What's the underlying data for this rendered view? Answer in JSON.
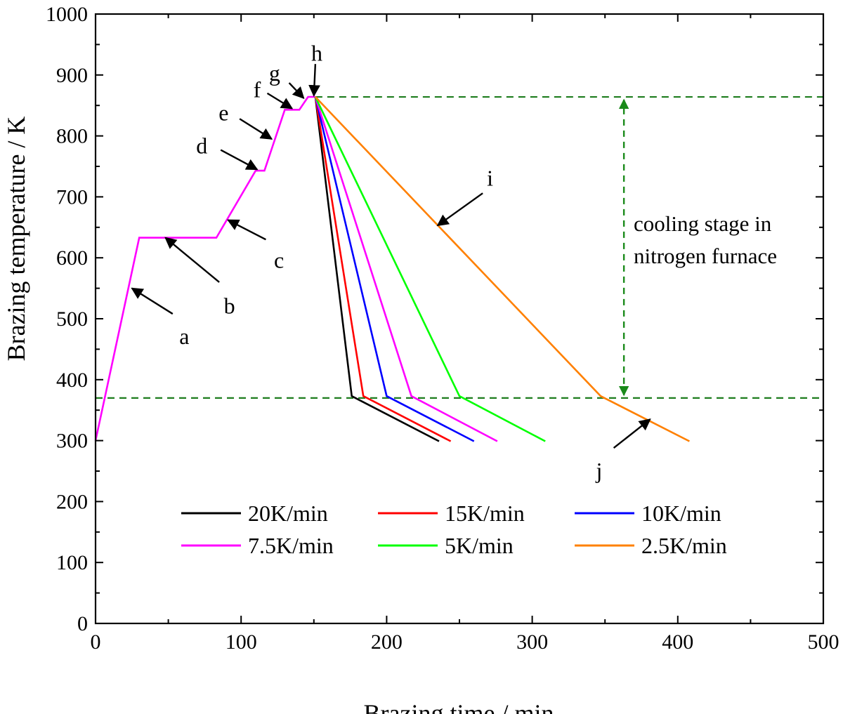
{
  "chart_data": {
    "type": "line",
    "xlabel": "Brazing time / min",
    "ylabel": "Brazing temperature / K",
    "xlim": [
      0,
      500
    ],
    "ylim": [
      0,
      1000
    ],
    "xticks": [
      0,
      100,
      200,
      300,
      400,
      500
    ],
    "yticks": [
      0,
      100,
      200,
      300,
      400,
      500,
      600,
      700,
      800,
      900,
      1000
    ],
    "heating_curve": {
      "color": "#ff00ff",
      "points": [
        [
          0,
          300
        ],
        [
          30,
          633
        ],
        [
          83,
          633
        ],
        [
          110,
          743
        ],
        [
          116,
          743
        ],
        [
          130,
          843
        ],
        [
          140,
          843
        ],
        [
          146,
          864
        ],
        [
          151,
          864
        ]
      ]
    },
    "series": [
      {
        "name": "20K/min",
        "color": "#000000",
        "points": [
          [
            151,
            864
          ],
          [
            176,
            373
          ],
          [
            236,
            299
          ]
        ]
      },
      {
        "name": "15K/min",
        "color": "#ff0000",
        "points": [
          [
            151,
            864
          ],
          [
            184,
            373
          ],
          [
            244,
            299
          ]
        ]
      },
      {
        "name": "10K/min",
        "color": "#0000ff",
        "points": [
          [
            151,
            864
          ],
          [
            200,
            373
          ],
          [
            260,
            299
          ]
        ]
      },
      {
        "name": "7.5K/min",
        "color": "#ff00ff",
        "points": [
          [
            151,
            864
          ],
          [
            217,
            373
          ],
          [
            276,
            299
          ]
        ]
      },
      {
        "name": "5K/min",
        "color": "#00ff00",
        "points": [
          [
            151,
            864
          ],
          [
            250,
            373
          ],
          [
            309,
            299
          ]
        ]
      },
      {
        "name": "2.5K/min",
        "color": "#ff8000",
        "points": [
          [
            151,
            864
          ],
          [
            347,
            373
          ],
          [
            408,
            299
          ]
        ]
      }
    ],
    "reference_lines": {
      "color": "#1e7d1e",
      "y_values": [
        864,
        370
      ]
    },
    "cooling_arrow": {
      "x": 363,
      "y_from": 370,
      "y_to": 864
    },
    "annotations": [
      {
        "label": "a",
        "tip": [
          25,
          550
        ],
        "tail": [
          53,
          508
        ],
        "text_at": [
          61,
          470
        ]
      },
      {
        "label": "b",
        "tip": [
          48,
          633
        ],
        "tail": [
          85,
          560
        ],
        "text_at": [
          92,
          520
        ]
      },
      {
        "label": "c",
        "tip": [
          91,
          662
        ],
        "tail": [
          117,
          630
        ],
        "text_at": [
          126,
          595
        ]
      },
      {
        "label": "d",
        "tip": [
          111,
          745
        ],
        "tail": [
          86,
          777
        ],
        "text_at": [
          73,
          783
        ]
      },
      {
        "label": "e",
        "tip": [
          121,
          795
        ],
        "tail": [
          99,
          828
        ],
        "text_at": [
          88,
          837
        ]
      },
      {
        "label": "f",
        "tip": [
          135,
          845
        ],
        "tail": [
          118,
          870
        ],
        "text_at": [
          111,
          875
        ]
      },
      {
        "label": "g",
        "tip": [
          143,
          862
        ],
        "tail": [
          133,
          887
        ],
        "text_at": [
          123,
          902
        ]
      },
      {
        "label": "h",
        "tip": [
          150,
          866
        ],
        "tail": [
          151,
          918
        ],
        "text_at": [
          152,
          935
        ]
      },
      {
        "label": "i",
        "tip": [
          235,
          653
        ],
        "tail": [
          266,
          706
        ],
        "text_at": [
          271,
          730
        ]
      },
      {
        "label": "j",
        "tip": [
          381,
          335
        ],
        "tail": [
          356,
          288
        ],
        "text_at": [
          346,
          250
        ]
      }
    ],
    "note": [
      "cooling stage in",
      "nitrogen furnace"
    ],
    "legend": {
      "placement": "bottom-center",
      "columns": 3
    }
  }
}
